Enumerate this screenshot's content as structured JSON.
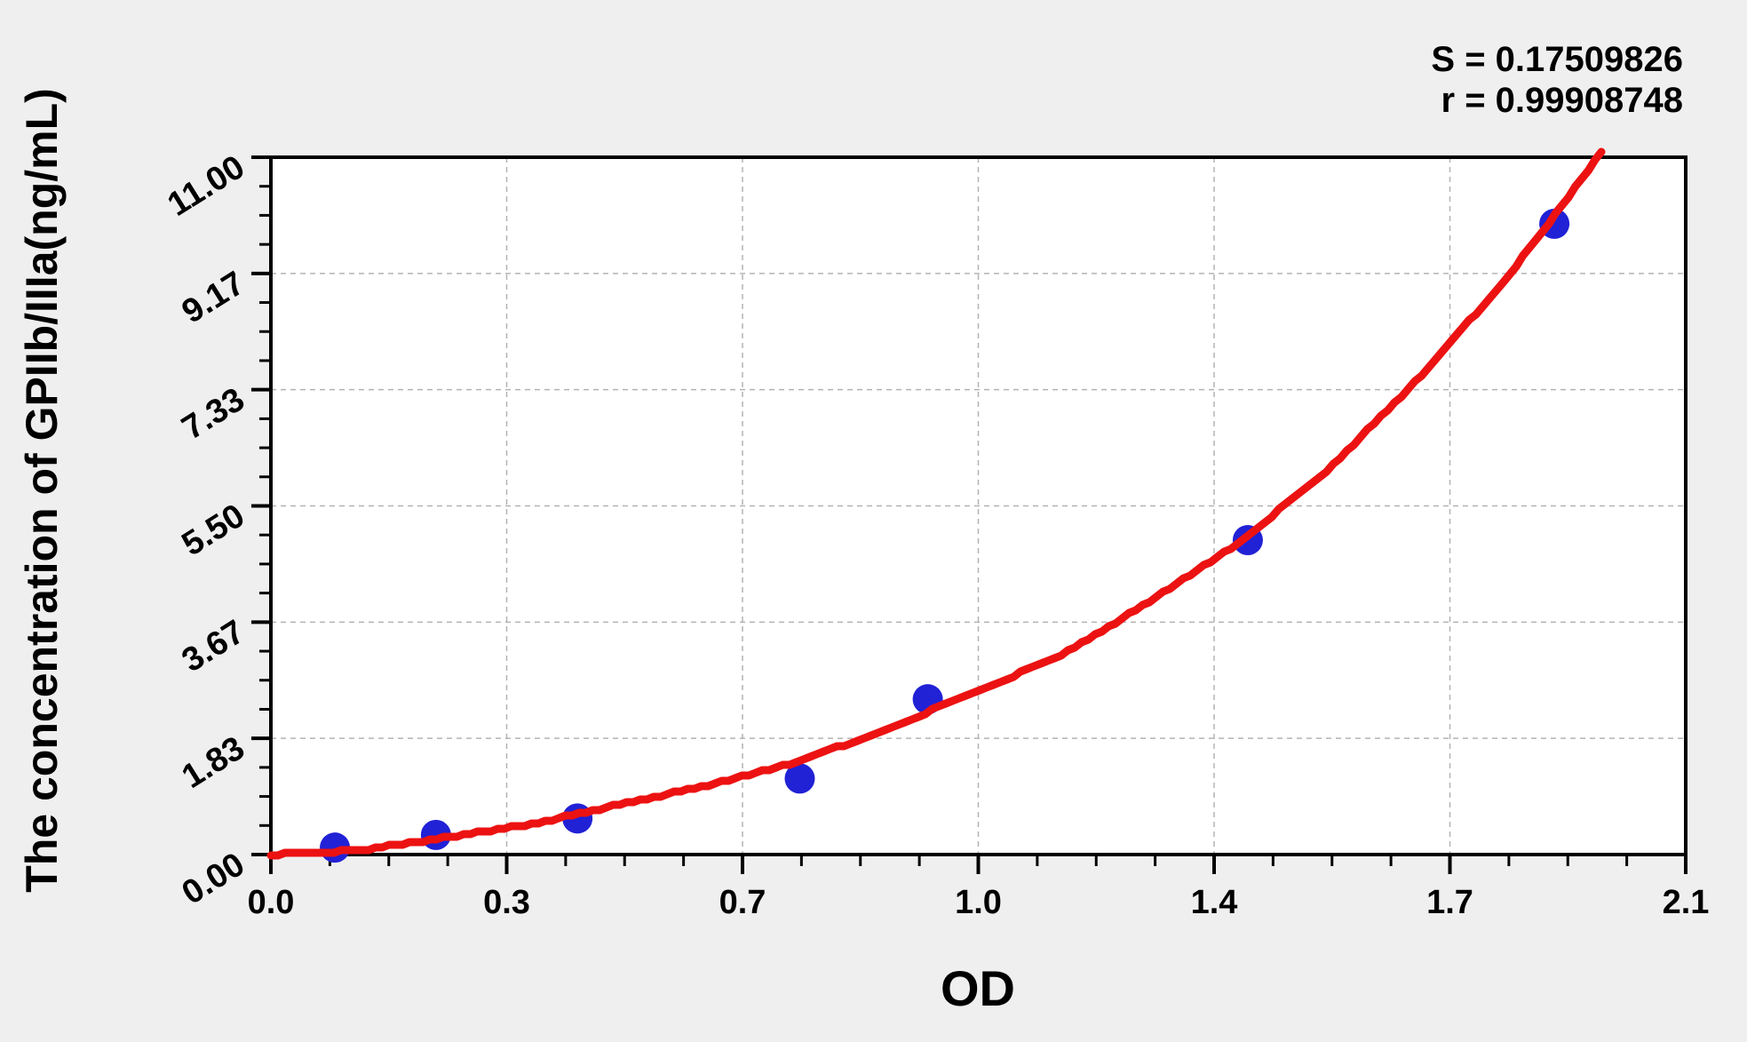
{
  "colors": {
    "background": "#efefef",
    "plot_background": "#ffffff",
    "axis": "#000000",
    "grid": "#b3b3b3",
    "point_color": "#2121d6",
    "curve_color": "#ec1212"
  },
  "chart_data": {
    "type": "scatter",
    "title": "",
    "xlabel": "OD",
    "ylabel": "The concentration of GPIIb/IIIa(ng/mL)",
    "xlim": [
      0,
      2.1
    ],
    "ylim": [
      0,
      11
    ],
    "x_ticks": {
      "values": [
        0,
        0.35,
        0.7,
        1.05,
        1.4,
        1.75,
        2.1
      ],
      "labels": [
        "0.0",
        "0.3",
        "0.7",
        "1.0",
        "1.4",
        "1.7",
        "2.1"
      ],
      "minor_per_interval": 3
    },
    "y_ticks": {
      "values": [
        0,
        1.8333,
        3.6667,
        5.5,
        7.3333,
        9.1667,
        11
      ],
      "labels": [
        "0.00",
        "1.83",
        "3.67",
        "5.50",
        "7.33",
        "9.17",
        "11.00"
      ],
      "minor_per_interval": 3
    },
    "grid": {
      "show": true,
      "style": "dashed"
    },
    "annotations": [
      {
        "id": "S",
        "text": "S = 0.17509826"
      },
      {
        "id": "r",
        "text": "r = 0.99908748"
      }
    ],
    "stats": {
      "S": 0.17509826,
      "r": 0.99908748
    },
    "series": [
      {
        "name": "standard-points",
        "type": "scatter",
        "marker": "circle",
        "color": "#2121d6",
        "x": [
          0.095,
          0.245,
          0.455,
          0.785,
          0.975,
          1.45,
          1.905
        ],
        "y": [
          0.11,
          0.31,
          0.57,
          1.2,
          2.45,
          4.96,
          9.95
        ]
      },
      {
        "name": "fitted-curve",
        "type": "line",
        "color": "#ec1212",
        "x": [
          0,
          0.125,
          0.256,
          0.387,
          0.518,
          0.649,
          0.78,
          0.911,
          1.042,
          1.173,
          1.304,
          1.435,
          1.567,
          1.698,
          1.829,
          1.897,
          1.975
        ],
        "y": [
          0,
          0.06,
          0.26,
          0.48,
          0.79,
          1.09,
          1.46,
          1.96,
          2.55,
          3.14,
          3.99,
          4.9,
          6.05,
          7.45,
          9.02,
          9.97,
          11.08
        ]
      }
    ]
  }
}
